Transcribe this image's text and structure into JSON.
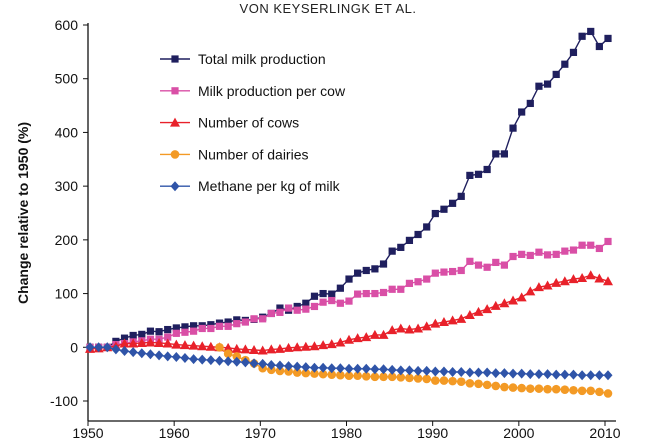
{
  "header": {
    "credit": "VON KEYSERLINGK ET AL."
  },
  "chart_data": {
    "type": "line",
    "title": "",
    "xlabel": "",
    "ylabel": "Change relative to 1950 (%)",
    "xlim": [
      1950,
      2010
    ],
    "ylim": [
      -100,
      600
    ],
    "xticks": [
      1950,
      1960,
      1970,
      1980,
      1990,
      2000,
      2010
    ],
    "yticks": [
      -100,
      0,
      100,
      200,
      300,
      400,
      500,
      600
    ],
    "grid": false,
    "legend_position": "top-left",
    "x_start": 1950,
    "series": [
      {
        "name": "Total milk production",
        "color": "#1f1f5e",
        "marker": "square",
        "values": [
          0,
          0,
          0,
          11,
          17,
          22,
          24,
          30,
          29,
          33,
          36,
          38,
          40,
          40,
          42,
          45,
          47,
          51,
          50,
          52,
          56,
          63,
          73,
          69,
          76,
          82,
          95,
          100,
          99,
          110,
          127,
          138,
          143,
          146,
          155,
          179,
          186,
          199,
          210,
          224,
          249,
          257,
          268,
          281,
          320,
          322,
          331,
          360,
          360,
          408,
          438,
          454,
          486,
          490,
          508,
          527,
          549,
          579,
          588,
          560,
          575
        ]
      },
      {
        "name": "Milk production per cow",
        "color": "#d94fa6",
        "marker": "square",
        "values": [
          0,
          0,
          0,
          5,
          7,
          10,
          12,
          15,
          15,
          19,
          26,
          28,
          30,
          35,
          35,
          39,
          39,
          44,
          47,
          53,
          53,
          63,
          65,
          73,
          69,
          71,
          76,
          84,
          87,
          82,
          86,
          99,
          100,
          100,
          102,
          108,
          108,
          119,
          122,
          127,
          138,
          140,
          141,
          143,
          160,
          153,
          149,
          158,
          153,
          169,
          173,
          171,
          177,
          172,
          173,
          179,
          181,
          190,
          190,
          184,
          197
        ]
      },
      {
        "name": "Number of cows",
        "color": "#e8212a",
        "marker": "triangle",
        "values": [
          -3,
          -2,
          0,
          2,
          7,
          7,
          8,
          9,
          8,
          7,
          5,
          4,
          3,
          2,
          1,
          0,
          -1,
          -3,
          -4,
          -5,
          -6,
          -4,
          -3,
          -1,
          0,
          1,
          2,
          4,
          6,
          9,
          14,
          17,
          19,
          23,
          23,
          32,
          35,
          33,
          35,
          39,
          44,
          47,
          50,
          53,
          60,
          66,
          71,
          77,
          82,
          87,
          93,
          104,
          112,
          115,
          120,
          123,
          127,
          129,
          134,
          128,
          123
        ]
      },
      {
        "name": "Number of dairies",
        "color": "#f39a25",
        "marker": "circle",
        "values": [
          null,
          null,
          null,
          null,
          null,
          null,
          null,
          null,
          null,
          null,
          null,
          null,
          null,
          null,
          null,
          0,
          -12,
          -17,
          -24,
          -30,
          -39,
          -42,
          -44,
          -45,
          -47,
          -48,
          -49,
          -50,
          -51,
          -52,
          -53,
          -53,
          -54,
          -55,
          -55,
          -55,
          -56,
          -57,
          -58,
          -59,
          -62,
          -62,
          -63,
          -64,
          -67,
          -68,
          -70,
          -72,
          -74,
          -75,
          -76,
          -77,
          -77,
          -78,
          -78,
          -79,
          -80,
          -81,
          -81,
          -83,
          -86
        ]
      },
      {
        "name": "Methane per kg of milk",
        "color": "#2f54a8",
        "marker": "diamond",
        "values": [
          0,
          0,
          0,
          -4,
          -7,
          -9,
          -11,
          -13,
          -15,
          -17,
          -18,
          -20,
          -22,
          -23,
          -24,
          -25,
          -26,
          -27,
          -28,
          -30,
          -31,
          -33,
          -34,
          -35,
          -36,
          -37,
          -38,
          -38,
          -39,
          -39,
          -40,
          -40,
          -40,
          -41,
          -41,
          -42,
          -43,
          -43,
          -44,
          -44,
          -45,
          -45,
          -46,
          -46,
          -47,
          -47,
          -47,
          -48,
          -48,
          -49,
          -49,
          -50,
          -50,
          -50,
          -51,
          -51,
          -51,
          -52,
          -52,
          -52,
          -52
        ]
      }
    ]
  }
}
